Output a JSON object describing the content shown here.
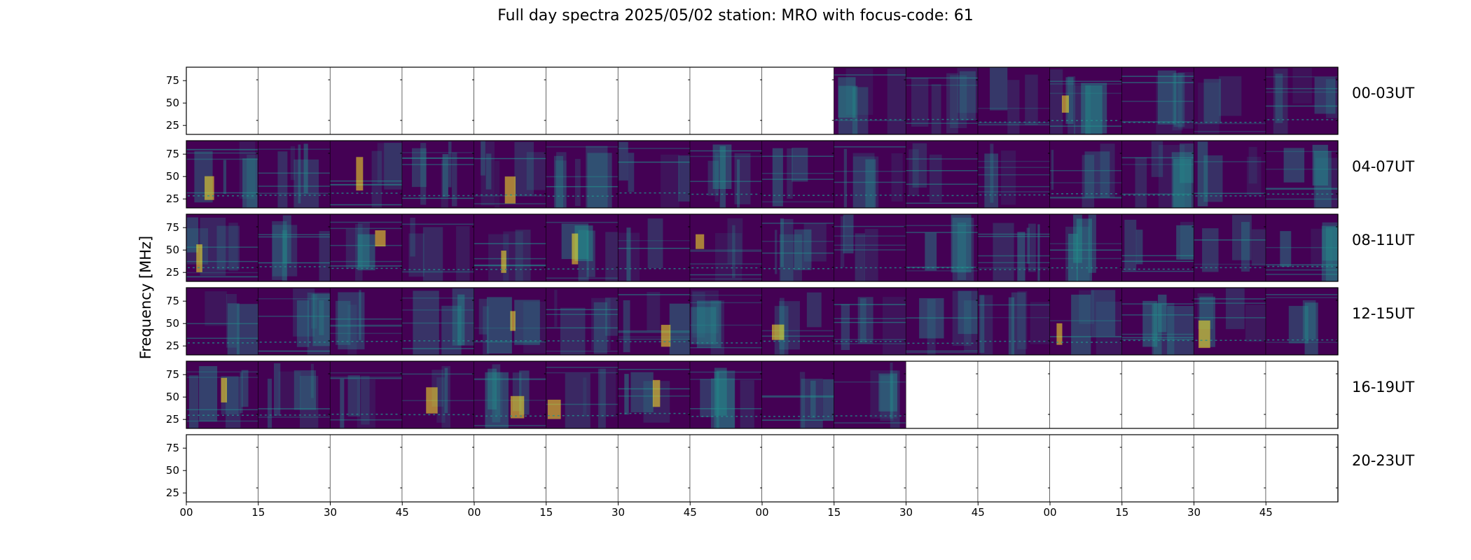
{
  "title": "Full day spectra 2025/05/02 station: MRO with focus-code: 61",
  "chart_data": {
    "type": "heatmap",
    "title": "Full day spectra 2025/05/02 station: MRO with focus-code: 61",
    "ylabel": "Frequency [MHz]",
    "xlabel": "",
    "colormap": "viridis",
    "colors": {
      "low": "#440154",
      "mid": "#21918c",
      "high": "#fde725"
    },
    "ylim": [
      15,
      90
    ],
    "y_ticks": [
      "25",
      "50",
      "75"
    ],
    "x_ticks": [
      "00",
      "15",
      "30",
      "45",
      "00",
      "15",
      "30",
      "45",
      "00",
      "15",
      "30",
      "45",
      "00",
      "15",
      "30",
      "45"
    ],
    "rows": [
      {
        "label": "00-03UT",
        "has_data": [
          false,
          false,
          false,
          false,
          false,
          false,
          false,
          false,
          false,
          true,
          true,
          true,
          true,
          true,
          true,
          true
        ]
      },
      {
        "label": "04-07UT",
        "has_data": [
          true,
          true,
          true,
          true,
          true,
          true,
          true,
          true,
          true,
          true,
          true,
          true,
          true,
          true,
          true,
          true
        ]
      },
      {
        "label": "08-11UT",
        "has_data": [
          true,
          true,
          true,
          true,
          true,
          true,
          true,
          true,
          true,
          true,
          true,
          true,
          true,
          true,
          true,
          true
        ]
      },
      {
        "label": "12-15UT",
        "has_data": [
          true,
          true,
          true,
          true,
          true,
          true,
          true,
          true,
          true,
          true,
          true,
          true,
          true,
          true,
          true,
          true
        ]
      },
      {
        "label": "16-19UT",
        "has_data": [
          true,
          true,
          true,
          true,
          true,
          true,
          true,
          true,
          true,
          true,
          false,
          false,
          false,
          false,
          false,
          false
        ]
      },
      {
        "label": "20-23UT",
        "has_data": [
          false,
          false,
          false,
          false,
          false,
          false,
          false,
          false,
          false,
          false,
          false,
          false,
          false,
          false,
          false,
          false
        ]
      }
    ]
  }
}
